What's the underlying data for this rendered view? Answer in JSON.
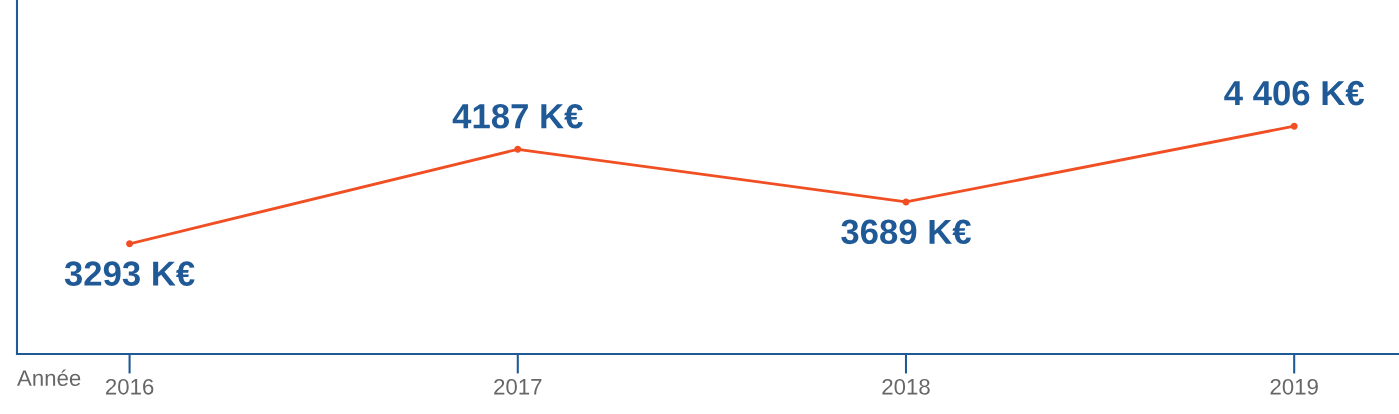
{
  "chart_data": {
    "type": "line",
    "xlabel": "Année",
    "categories": [
      "2016",
      "2017",
      "2018",
      "2019"
    ],
    "series": [
      {
        "color": "#f04e23",
        "values": [
          3293,
          4187,
          3689,
          4406
        ],
        "value_labels": [
          "3293 K€",
          "4187 K€",
          "3689 K€",
          "4 406 K€"
        ]
      }
    ],
    "ylim": [
      2250,
      5600
    ],
    "marker": "circle",
    "line_style": "solid",
    "grid": false,
    "legend": false,
    "tick_labels": "x"
  }
}
